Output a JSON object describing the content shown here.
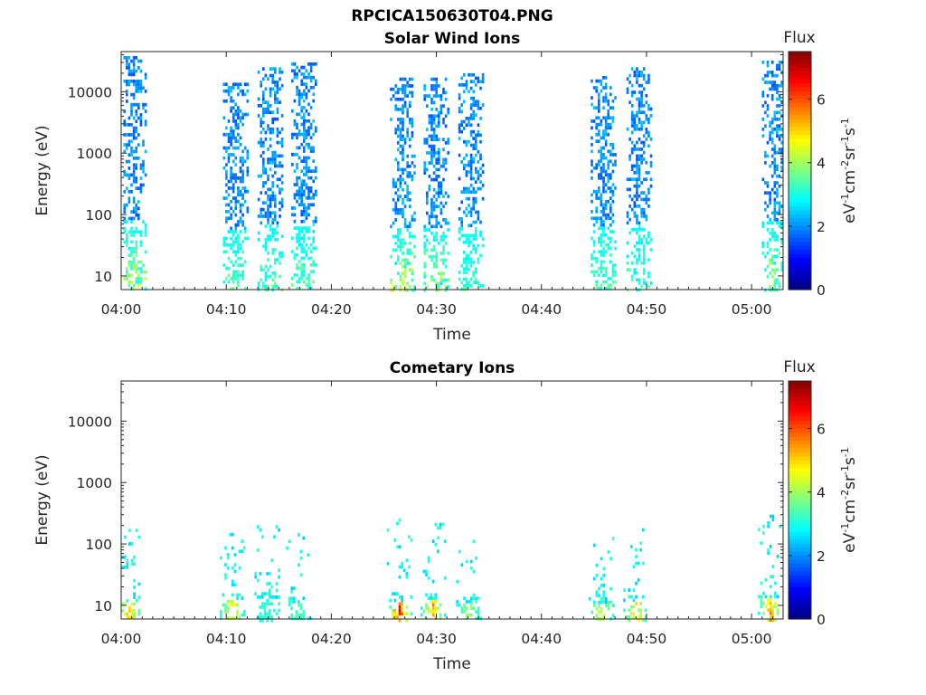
{
  "figure_title": "RPCICA150630T04.PNG",
  "colorbar": {
    "title": "Flux",
    "label_parts": [
      "eV",
      "-1",
      "cm",
      "-2",
      "sr",
      "-1",
      "s",
      "-1"
    ],
    "ticks": [
      "0",
      "2",
      "4",
      "6"
    ],
    "range": [
      0,
      7.5
    ],
    "colormap": "jet"
  },
  "chart_data": [
    {
      "type": "heatmap",
      "title": "Solar Wind Ions",
      "xlabel": "Time",
      "ylabel": "Energy (eV)",
      "x_ticks": [
        "04:00",
        "04:10",
        "04:20",
        "04:30",
        "04:40",
        "04:50",
        "05:00"
      ],
      "x_range_min": [
        0,
        63
      ],
      "y_scale": "log",
      "y_ticks": [
        "10",
        "100",
        "1000",
        "10000"
      ],
      "y_range_eV": [
        6,
        45000
      ],
      "background": "#ffffff",
      "bursts": [
        {
          "t": 1.1,
          "e_low": 6,
          "e_high": 38000,
          "peak": 4.6
        },
        {
          "t": 10.8,
          "e_low": 6,
          "e_high": 14000,
          "peak": 3.6
        },
        {
          "t": 14.1,
          "e_low": 6,
          "e_high": 25000,
          "peak": 3.5
        },
        {
          "t": 17.3,
          "e_low": 6,
          "e_high": 30000,
          "peak": 3.5
        },
        {
          "t": 26.7,
          "e_low": 6,
          "e_high": 17000,
          "peak": 4.8
        },
        {
          "t": 29.9,
          "e_low": 6,
          "e_high": 17000,
          "peak": 4.4
        },
        {
          "t": 33.2,
          "e_low": 6,
          "e_high": 20000,
          "peak": 3.4
        },
        {
          "t": 45.8,
          "e_low": 6,
          "e_high": 18000,
          "peak": 3.6
        },
        {
          "t": 49.2,
          "e_low": 6,
          "e_high": 25000,
          "peak": 3.5
        },
        {
          "t": 62.1,
          "e_low": 6,
          "e_high": 32000,
          "peak": 4.5
        }
      ]
    },
    {
      "type": "heatmap",
      "title": "Cometary Ions",
      "xlabel": "Time",
      "ylabel": "Energy (eV)",
      "x_ticks": [
        "04:00",
        "04:10",
        "04:20",
        "04:30",
        "04:40",
        "04:50",
        "05:00"
      ],
      "x_range_min": [
        0,
        63
      ],
      "y_scale": "log",
      "y_ticks": [
        "10",
        "100",
        "1000",
        "10000"
      ],
      "y_range_eV": [
        6,
        45000
      ],
      "background": "#ffffff",
      "bursts": [
        {
          "t": 0.7,
          "e_low": 8,
          "e_high": 200,
          "peak": 5.6
        },
        {
          "t": 10.5,
          "e_low": 8,
          "e_high": 220,
          "peak": 5.2
        },
        {
          "t": 13.8,
          "e_low": 8,
          "e_high": 260,
          "peak": 3.2
        },
        {
          "t": 16.8,
          "e_low": 8,
          "e_high": 150,
          "peak": 3.5
        },
        {
          "t": 26.4,
          "e_low": 8,
          "e_high": 260,
          "peak": 6.8
        },
        {
          "t": 29.6,
          "e_low": 8,
          "e_high": 220,
          "peak": 5.8
        },
        {
          "t": 33.0,
          "e_low": 8,
          "e_high": 150,
          "peak": 4.2
        },
        {
          "t": 45.6,
          "e_low": 8,
          "e_high": 130,
          "peak": 4.8
        },
        {
          "t": 48.9,
          "e_low": 8,
          "e_high": 180,
          "peak": 5.2
        },
        {
          "t": 61.7,
          "e_low": 8,
          "e_high": 300,
          "peak": 5.8
        }
      ]
    }
  ]
}
